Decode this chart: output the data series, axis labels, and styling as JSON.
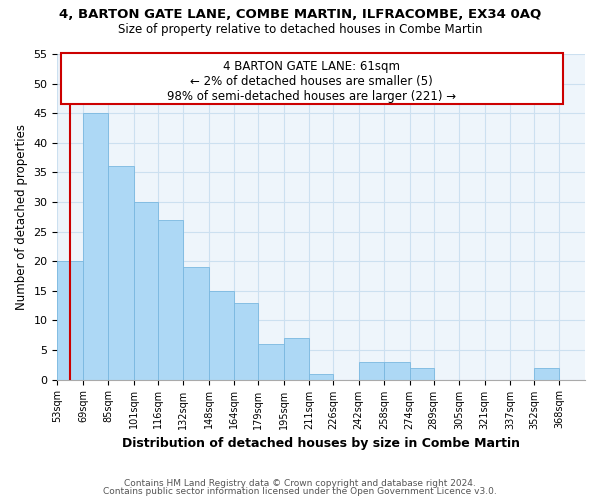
{
  "title1": "4, BARTON GATE LANE, COMBE MARTIN, ILFRACOMBE, EX34 0AQ",
  "title2": "Size of property relative to detached houses in Combe Martin",
  "xlabel": "Distribution of detached houses by size in Combe Martin",
  "ylabel": "Number of detached properties",
  "bar_left_edges": [
    53,
    69,
    85,
    101,
    116,
    132,
    148,
    164,
    179,
    195,
    211,
    226,
    242,
    258,
    274,
    289,
    305,
    321,
    337,
    352
  ],
  "bar_heights": [
    20,
    45,
    36,
    30,
    27,
    19,
    15,
    13,
    6,
    7,
    1,
    0,
    3,
    3,
    2,
    0,
    0,
    0,
    0,
    2
  ],
  "bar_widths": [
    16,
    16,
    16,
    15,
    16,
    16,
    16,
    15,
    16,
    16,
    15,
    16,
    16,
    16,
    15,
    16,
    16,
    16,
    15,
    16
  ],
  "tick_labels": [
    "53sqm",
    "69sqm",
    "85sqm",
    "101sqm",
    "116sqm",
    "132sqm",
    "148sqm",
    "164sqm",
    "179sqm",
    "195sqm",
    "211sqm",
    "226sqm",
    "242sqm",
    "258sqm",
    "274sqm",
    "289sqm",
    "305sqm",
    "321sqm",
    "337sqm",
    "352sqm",
    "368sqm"
  ],
  "tick_positions": [
    53,
    69,
    85,
    101,
    116,
    132,
    148,
    164,
    179,
    195,
    211,
    226,
    242,
    258,
    274,
    289,
    305,
    321,
    337,
    352,
    368
  ],
  "bar_color": "#add8f5",
  "marker_line_color": "#cc0000",
  "ylim": [
    0,
    55
  ],
  "yticks": [
    0,
    5,
    10,
    15,
    20,
    25,
    30,
    35,
    40,
    45,
    50,
    55
  ],
  "xlim": [
    53,
    384
  ],
  "annotation_text_line1": "4 BARTON GATE LANE: 61sqm",
  "annotation_text_line2": "← 2% of detached houses are smaller (5)",
  "annotation_text_line3": "98% of semi-detached houses are larger (221) →",
  "property_x": 61,
  "footer1": "Contains HM Land Registry data © Crown copyright and database right 2024.",
  "footer2": "Contains public sector information licensed under the Open Government Licence v3.0.",
  "grid_color": "#cce0f0",
  "background_color": "#eef5fb"
}
